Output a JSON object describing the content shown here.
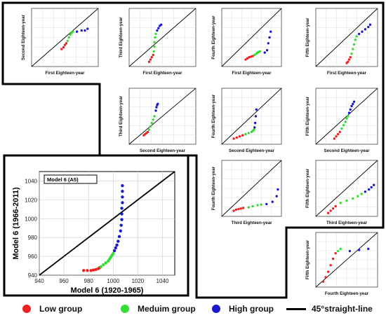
{
  "legend": {
    "low": "Low group",
    "medium": "Meduim group",
    "high": "High group",
    "line": "45°straight-line"
  },
  "colors": {
    "low": "#ee2222",
    "medium": "#33dd33",
    "high": "#1a1acc",
    "line": "#000000"
  },
  "chart_data": [
    {
      "type": "scatter",
      "panel": "main",
      "title": "Model 6 (A5)",
      "xlabel": "Model 6 (1920-1965)",
      "ylabel": "Model 6 (1966-2011)",
      "xlim": [
        940,
        1050
      ],
      "ylim": [
        940,
        1050
      ],
      "xticks": [
        940,
        960,
        980,
        1000,
        1020,
        1040
      ],
      "yticks": [
        940,
        960,
        980,
        1000,
        1020,
        1040
      ],
      "grid": true,
      "reference_line": "45° straight line",
      "series": [
        {
          "group": "low",
          "x": [
            976,
            979,
            982,
            984,
            986,
            988,
            989
          ],
          "y": [
            945,
            945,
            945,
            945.5,
            946,
            947,
            948
          ]
        },
        {
          "group": "medium",
          "x": [
            990,
            992,
            994,
            996,
            997,
            998,
            999,
            1000
          ],
          "y": [
            949,
            951,
            953,
            955,
            957,
            959,
            961,
            963
          ]
        },
        {
          "group": "high",
          "x": [
            1001,
            1002,
            1003,
            1004,
            1005,
            1006,
            1006.5,
            1007,
            1007,
            1007,
            1007.5,
            1007.5,
            1007.5,
            1007.5
          ],
          "y": [
            966,
            969,
            972,
            976,
            981,
            987,
            993,
            999,
            1005,
            1011,
            1017,
            1023,
            1029,
            1035
          ]
        }
      ]
    },
    {
      "type": "scatter",
      "panel": "first-vs-second",
      "xlabel": "First Eighteen-year",
      "ylabel": "Second Eighteen-year",
      "series": [
        {
          "group": "low",
          "x": [
            0.45,
            0.48,
            0.5,
            0.52
          ],
          "y": [
            0.3,
            0.33,
            0.37,
            0.4
          ]
        },
        {
          "group": "medium",
          "x": [
            0.54,
            0.56,
            0.58,
            0.6,
            0.62
          ],
          "y": [
            0.44,
            0.5,
            0.55,
            0.58,
            0.6
          ]
        },
        {
          "group": "high",
          "x": [
            0.68,
            0.75,
            0.8,
            0.84
          ],
          "y": [
            0.6,
            0.62,
            0.62,
            0.65
          ]
        }
      ]
    },
    {
      "type": "scatter",
      "panel": "first-vs-third",
      "xlabel": "First Eighteen-year",
      "ylabel": "Third Eighteen-year",
      "series": [
        {
          "group": "low",
          "x": [
            0.3,
            0.32,
            0.34,
            0.36
          ],
          "y": [
            0.08,
            0.12,
            0.16,
            0.2
          ]
        },
        {
          "group": "medium",
          "x": [
            0.37,
            0.38,
            0.38,
            0.39,
            0.4
          ],
          "y": [
            0.26,
            0.34,
            0.42,
            0.5,
            0.56
          ]
        },
        {
          "group": "high",
          "x": [
            0.42,
            0.44,
            0.46,
            0.48
          ],
          "y": [
            0.62,
            0.66,
            0.7,
            0.72
          ]
        }
      ]
    },
    {
      "type": "scatter",
      "panel": "first-vs-fourth",
      "xlabel": "First Eighteen-year",
      "ylabel": "Fourth Eighteen-year",
      "series": [
        {
          "group": "low",
          "x": [
            0.4,
            0.43,
            0.46,
            0.49,
            0.52
          ],
          "y": [
            0.12,
            0.14,
            0.16,
            0.17,
            0.18
          ]
        },
        {
          "group": "medium",
          "x": [
            0.55,
            0.58,
            0.6,
            0.62,
            0.64
          ],
          "y": [
            0.2,
            0.22,
            0.24,
            0.25,
            0.26
          ]
        },
        {
          "group": "high",
          "x": [
            0.72,
            0.76,
            0.78,
            0.8,
            0.82
          ],
          "y": [
            0.24,
            0.28,
            0.4,
            0.5,
            0.6
          ]
        }
      ]
    },
    {
      "type": "scatter",
      "panel": "first-vs-fifth",
      "xlabel": "First Eighteen-year",
      "ylabel": "Fifth Eighteen-year",
      "series": [
        {
          "group": "low",
          "x": [
            0.5,
            0.52,
            0.54,
            0.56
          ],
          "y": [
            0.06,
            0.08,
            0.12,
            0.16
          ]
        },
        {
          "group": "medium",
          "x": [
            0.58,
            0.6,
            0.62,
            0.64,
            0.66
          ],
          "y": [
            0.22,
            0.3,
            0.38,
            0.46,
            0.52
          ]
        },
        {
          "group": "high",
          "x": [
            0.7,
            0.75,
            0.8,
            0.85,
            0.88
          ],
          "y": [
            0.56,
            0.6,
            0.64,
            0.68,
            0.72
          ]
        }
      ]
    },
    {
      "type": "scatter",
      "panel": "second-vs-third",
      "xlabel": "Second Eighteen-year",
      "ylabel": "Third Eighteen-year",
      "series": [
        {
          "group": "low",
          "x": [
            0.22,
            0.24,
            0.26,
            0.28
          ],
          "y": [
            0.16,
            0.18,
            0.2,
            0.22
          ]
        },
        {
          "group": "medium",
          "x": [
            0.3,
            0.32,
            0.34,
            0.36,
            0.38
          ],
          "y": [
            0.26,
            0.32,
            0.38,
            0.44,
            0.5
          ]
        },
        {
          "group": "high",
          "x": [
            0.4,
            0.41,
            0.42,
            0.43
          ],
          "y": [
            0.6,
            0.66,
            0.7,
            0.72
          ]
        }
      ]
    },
    {
      "type": "scatter",
      "panel": "second-vs-fourth",
      "xlabel": "Second Eighteen-year",
      "ylabel": "Fourth Eighteen-year",
      "series": [
        {
          "group": "low",
          "x": [
            0.2,
            0.25,
            0.3,
            0.35
          ],
          "y": [
            0.1,
            0.12,
            0.14,
            0.16
          ]
        },
        {
          "group": "medium",
          "x": [
            0.4,
            0.45,
            0.5,
            0.52,
            0.54
          ],
          "y": [
            0.18,
            0.2,
            0.22,
            0.24,
            0.26
          ]
        },
        {
          "group": "high",
          "x": [
            0.55,
            0.56,
            0.57,
            0.58
          ],
          "y": [
            0.3,
            0.38,
            0.5,
            0.62
          ]
        }
      ]
    },
    {
      "type": "scatter",
      "panel": "second-vs-fifth",
      "xlabel": "Second Eighteen-year",
      "ylabel": "Fifth Eighteen-year",
      "series": [
        {
          "group": "low",
          "x": [
            0.3,
            0.33,
            0.36,
            0.39
          ],
          "y": [
            0.1,
            0.14,
            0.18,
            0.22
          ]
        },
        {
          "group": "medium",
          "x": [
            0.42,
            0.45,
            0.48,
            0.5,
            0.52
          ],
          "y": [
            0.28,
            0.34,
            0.4,
            0.46,
            0.5
          ]
        },
        {
          "group": "high",
          "x": [
            0.54,
            0.56,
            0.58,
            0.6,
            0.62
          ],
          "y": [
            0.56,
            0.62,
            0.68,
            0.72,
            0.76
          ]
        }
      ]
    },
    {
      "type": "scatter",
      "panel": "third-vs-fourth",
      "xlabel": "Third Eighteen-year",
      "ylabel": "Fourth Eighteen-year",
      "series": [
        {
          "group": "low",
          "x": [
            0.2,
            0.24,
            0.28,
            0.32,
            0.36
          ],
          "y": [
            0.1,
            0.12,
            0.13,
            0.14,
            0.15
          ]
        },
        {
          "group": "medium",
          "x": [
            0.45,
            0.52,
            0.6,
            0.66
          ],
          "y": [
            0.16,
            0.18,
            0.2,
            0.21
          ]
        },
        {
          "group": "high",
          "x": [
            0.75,
            0.85,
            0.92,
            0.94
          ],
          "y": [
            0.22,
            0.26,
            0.36,
            0.48
          ]
        }
      ]
    },
    {
      "type": "scatter",
      "panel": "third-vs-fifth",
      "xlabel": "Third Eighteen-year",
      "ylabel": "Fifth Eighteen-year",
      "series": [
        {
          "group": "low",
          "x": [
            0.2,
            0.24,
            0.28,
            0.32
          ],
          "y": [
            0.06,
            0.1,
            0.14,
            0.18
          ]
        },
        {
          "group": "medium",
          "x": [
            0.4,
            0.5,
            0.6,
            0.68,
            0.74
          ],
          "y": [
            0.24,
            0.28,
            0.32,
            0.36,
            0.4
          ]
        },
        {
          "group": "high",
          "x": [
            0.8,
            0.86,
            0.9,
            0.94
          ],
          "y": [
            0.44,
            0.48,
            0.52,
            0.56
          ]
        }
      ]
    },
    {
      "type": "scatter",
      "panel": "fourth-vs-fifth",
      "xlabel": "Fourth Eighteen-year",
      "ylabel": "Fifth Eighteen-year",
      "series": [
        {
          "group": "low",
          "x": [
            0.12,
            0.16,
            0.2,
            0.24,
            0.28,
            0.32
          ],
          "y": [
            0.1,
            0.18,
            0.28,
            0.4,
            0.52,
            0.62
          ]
        },
        {
          "group": "medium",
          "x": [
            0.36,
            0.4
          ],
          "y": [
            0.66,
            0.7
          ]
        },
        {
          "group": "high",
          "x": [
            0.55,
            0.7,
            0.85
          ],
          "y": [
            0.66,
            0.68,
            0.7
          ]
        }
      ]
    }
  ]
}
